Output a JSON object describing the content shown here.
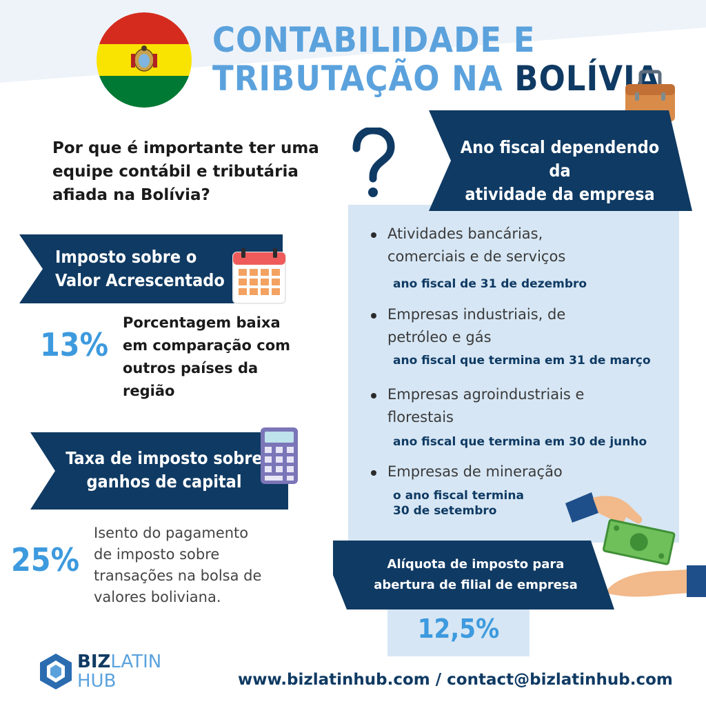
{
  "title": {
    "line1": "CONTABILIDADE E",
    "line2_light": "TRIBUTAÇÃO NA ",
    "line2_dark": "BOLÍVIA"
  },
  "question": "Por que é importante ter uma equipe contábil e tributária afiada na Bolívia?",
  "vat": {
    "banner": [
      "Imposto sobre o",
      "Valor Acrescentado"
    ],
    "percent": "13%",
    "description": [
      "Porcentagem baixa",
      "em comparação com",
      "outros países da",
      "região"
    ]
  },
  "capital_gains": {
    "banner": [
      "Taxa de imposto sobre",
      "ganhos de capital"
    ],
    "percent": "25%",
    "description": [
      "Isento do pagamento",
      "de imposto sobre",
      "transações na bolsa de",
      "valores boliviana."
    ]
  },
  "fiscal_year": {
    "banner": [
      "Ano fiscal dependendo da",
      "atividade da empresa"
    ],
    "items": [
      {
        "activity": [
          "Atividades bancárias,",
          "comerciais e de serviços"
        ],
        "period": [
          "ano fiscal de 31 de dezembro"
        ]
      },
      {
        "activity": [
          "Empresas industriais, de",
          "petróleo e gás"
        ],
        "period": [
          "ano fiscal que termina em 31 de março"
        ]
      },
      {
        "activity": [
          "Empresas agroindustriais e",
          "florestais"
        ],
        "period": [
          "ano fiscal que termina em 30 de junho"
        ]
      },
      {
        "activity": [
          "Empresas de mineração"
        ],
        "period": [
          "o ano fiscal termina",
          "30 de setembro"
        ]
      }
    ]
  },
  "branch": {
    "banner": [
      "Alíquota de imposto para",
      "abertura de filial de empresa"
    ],
    "percent": "12,5%"
  },
  "logo": {
    "biz": "BIZ",
    "latin": "LATIN",
    "hub": "HUB"
  },
  "footer": "www.bizlatinhub.com / contact@bizlatinhub.com",
  "colors": {
    "navy": "#0f3a63",
    "accent_blue": "#3d9ade",
    "light_blue": "#d6e6f4"
  },
  "icons": [
    "bolivia-flag-icon",
    "question-mark-icon",
    "briefcase-icon",
    "calendar-icon",
    "calculator-icon",
    "money-handover-icon"
  ]
}
